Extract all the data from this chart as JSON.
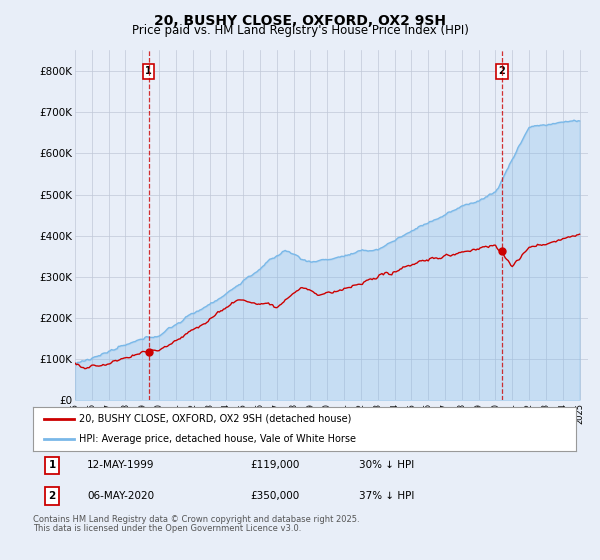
{
  "title": "20, BUSHY CLOSE, OXFORD, OX2 9SH",
  "subtitle": "Price paid vs. HM Land Registry's House Price Index (HPI)",
  "title_fontsize": 10,
  "subtitle_fontsize": 8.5,
  "ylim": [
    0,
    850000
  ],
  "yticks": [
    0,
    100000,
    200000,
    300000,
    400000,
    500000,
    600000,
    700000,
    800000
  ],
  "ytick_labels": [
    "£0",
    "£100K",
    "£200K",
    "£300K",
    "£400K",
    "£500K",
    "£600K",
    "£700K",
    "£800K"
  ],
  "x_start_year": 1995,
  "x_end_year": 2025,
  "hpi_color": "#7ab8e8",
  "hpi_fill_color": "#ddeeff",
  "price_color": "#cc0000",
  "sale1_year": 1999.37,
  "sale1_price": 119000,
  "sale1_pct": "30%",
  "sale1_date": "12-MAY-1999",
  "sale2_year": 2020.37,
  "sale2_price": 350000,
  "sale2_pct": "37%",
  "sale2_date": "06-MAY-2020",
  "legend_label1": "20, BUSHY CLOSE, OXFORD, OX2 9SH (detached house)",
  "legend_label2": "HPI: Average price, detached house, Vale of White Horse",
  "footnote1": "Contains HM Land Registry data © Crown copyright and database right 2025.",
  "footnote2": "This data is licensed under the Open Government Licence v3.0.",
  "bg_color": "#e8eef8",
  "plot_bg_color": "#e8eef8",
  "grid_color": "#c0c8d8"
}
